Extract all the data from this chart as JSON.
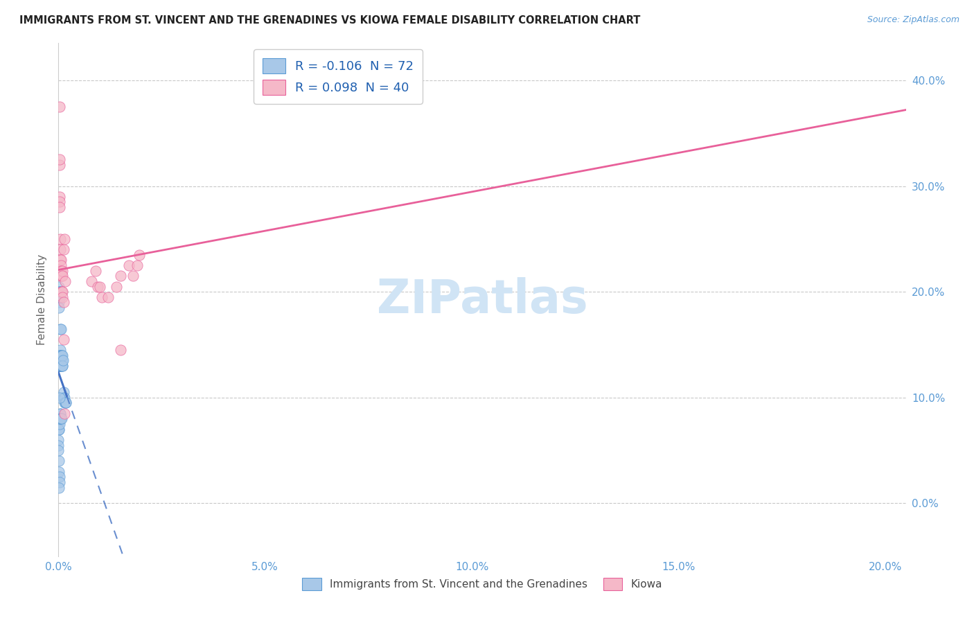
{
  "title": "IMMIGRANTS FROM ST. VINCENT AND THE GRENADINES VS KIOWA FEMALE DISABILITY CORRELATION CHART",
  "source": "Source: ZipAtlas.com",
  "ylabel_label": "Female Disability",
  "xlim": [
    0.0,
    0.205
  ],
  "ylim": [
    -0.05,
    0.435
  ],
  "blue_R": -0.106,
  "blue_N": 72,
  "pink_R": 0.098,
  "pink_N": 40,
  "blue_scatter_x": [
    0.0,
    0.0,
    0.0001,
    0.0001,
    0.0001,
    0.0001,
    0.0001,
    0.0001,
    0.0001,
    0.0001,
    0.0002,
    0.0002,
    0.0002,
    0.0002,
    0.0002,
    0.0002,
    0.0003,
    0.0003,
    0.0003,
    0.0003,
    0.0004,
    0.0004,
    0.0004,
    0.0004,
    0.0005,
    0.0005,
    0.0005,
    0.0005,
    0.0005,
    0.0006,
    0.0006,
    0.0006,
    0.0006,
    0.0007,
    0.0007,
    0.0008,
    0.0008,
    0.0009,
    0.0009,
    0.001,
    0.001,
    0.0011,
    0.0011,
    0.0012,
    0.0013,
    0.0014,
    0.0015,
    0.0016,
    0.0017,
    0.0018,
    0.0,
    0.0,
    0.0001,
    0.0001,
    0.0002,
    0.0002,
    0.0002,
    0.0003,
    0.0003,
    0.0004,
    0.0004,
    0.0005,
    0.0006,
    0.0007,
    0.0001,
    0.0001,
    0.0002,
    0.0003,
    0.0001,
    0.0,
    0.0,
    0.0
  ],
  "blue_scatter_y": [
    0.2,
    0.195,
    0.205,
    0.2,
    0.19,
    0.185,
    0.14,
    0.14,
    0.135,
    0.13,
    0.14,
    0.135,
    0.13,
    0.13,
    0.195,
    0.14,
    0.14,
    0.135,
    0.13,
    0.2,
    0.145,
    0.14,
    0.135,
    0.195,
    0.14,
    0.135,
    0.13,
    0.13,
    0.165,
    0.135,
    0.13,
    0.165,
    0.2,
    0.14,
    0.13,
    0.14,
    0.13,
    0.135,
    0.13,
    0.14,
    0.13,
    0.135,
    0.1,
    0.1,
    0.105,
    0.1,
    0.095,
    0.095,
    0.095,
    0.095,
    0.075,
    0.07,
    0.07,
    0.07,
    0.08,
    0.075,
    0.08,
    0.08,
    0.1,
    0.085,
    0.085,
    0.08,
    0.08,
    0.08,
    0.04,
    0.03,
    0.025,
    0.02,
    0.015,
    0.06,
    0.055,
    0.05
  ],
  "pink_scatter_x": [
    0.00025,
    0.00025,
    0.00025,
    0.0003,
    0.00035,
    0.00035,
    0.0004,
    0.0004,
    0.00045,
    0.0005,
    0.0005,
    0.00055,
    0.0006,
    0.0006,
    0.0007,
    0.0007,
    0.0008,
    0.0009,
    0.0009,
    0.001,
    0.001,
    0.0012,
    0.0013,
    0.0013,
    0.0014,
    0.0015,
    0.0016,
    0.008,
    0.009,
    0.0095,
    0.01,
    0.0105,
    0.012,
    0.014,
    0.015,
    0.015,
    0.017,
    0.018,
    0.019,
    0.0195
  ],
  "pink_scatter_y": [
    0.375,
    0.32,
    0.29,
    0.325,
    0.285,
    0.28,
    0.25,
    0.24,
    0.23,
    0.22,
    0.215,
    0.23,
    0.225,
    0.22,
    0.215,
    0.2,
    0.2,
    0.22,
    0.2,
    0.215,
    0.195,
    0.19,
    0.155,
    0.24,
    0.25,
    0.085,
    0.21,
    0.21,
    0.22,
    0.205,
    0.205,
    0.195,
    0.195,
    0.205,
    0.145,
    0.215,
    0.225,
    0.215,
    0.225,
    0.235
  ],
  "blue_color": "#a8c8e8",
  "pink_color": "#f5b8c8",
  "blue_edge_color": "#5b9bd5",
  "pink_edge_color": "#e8609a",
  "blue_line_color": "#4472c4",
  "pink_line_color": "#e8609a",
  "watermark_color": "#d0e4f5",
  "background_color": "#ffffff",
  "grid_color": "#c8c8c8",
  "tick_color": "#5b9bd5",
  "ylabel_color": "#666666",
  "title_color": "#222222",
  "source_color": "#5b9bd5",
  "legend_text_color": "#2060b0"
}
